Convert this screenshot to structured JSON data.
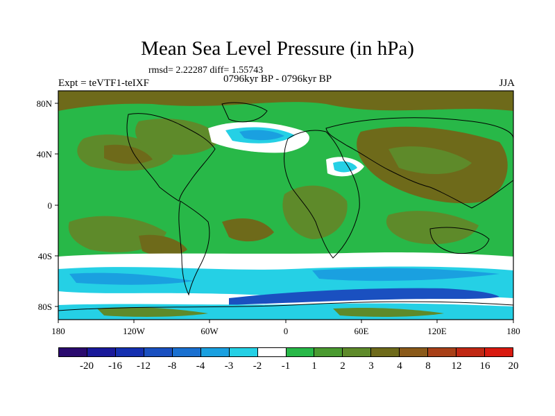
{
  "title": "Mean Sea Level Pressure (in hPa)",
  "stats": "rmsd= 2.22287 diff= 1.55743",
  "expt": "Expt = teVTF1-teIXF",
  "period": "0796kyr BP - 0796kyr BP",
  "season": "JJA",
  "axes": {
    "x_ticks": [
      "180",
      "120W",
      "60W",
      "0",
      "60E",
      "120E",
      "180"
    ],
    "y_ticks": [
      "80N",
      "40N",
      "0",
      "40S",
      "80S"
    ]
  },
  "colorbar": {
    "colors": [
      "#2a0a6e",
      "#1a1a9a",
      "#1530b0",
      "#1a50c0",
      "#1a70d0",
      "#1aa0e0",
      "#25d0e5",
      "#ffffff",
      "#28b848",
      "#4a9a30",
      "#5e8a2a",
      "#6e6a1a",
      "#8a5a1a",
      "#a84018",
      "#c02814",
      "#d81a10"
    ],
    "labels": [
      "-20",
      "-16",
      "-12",
      "-8",
      "-4",
      "-3",
      "-2",
      "-1",
      "1",
      "2",
      "3",
      "4",
      "8",
      "12",
      "16",
      "20"
    ]
  }
}
